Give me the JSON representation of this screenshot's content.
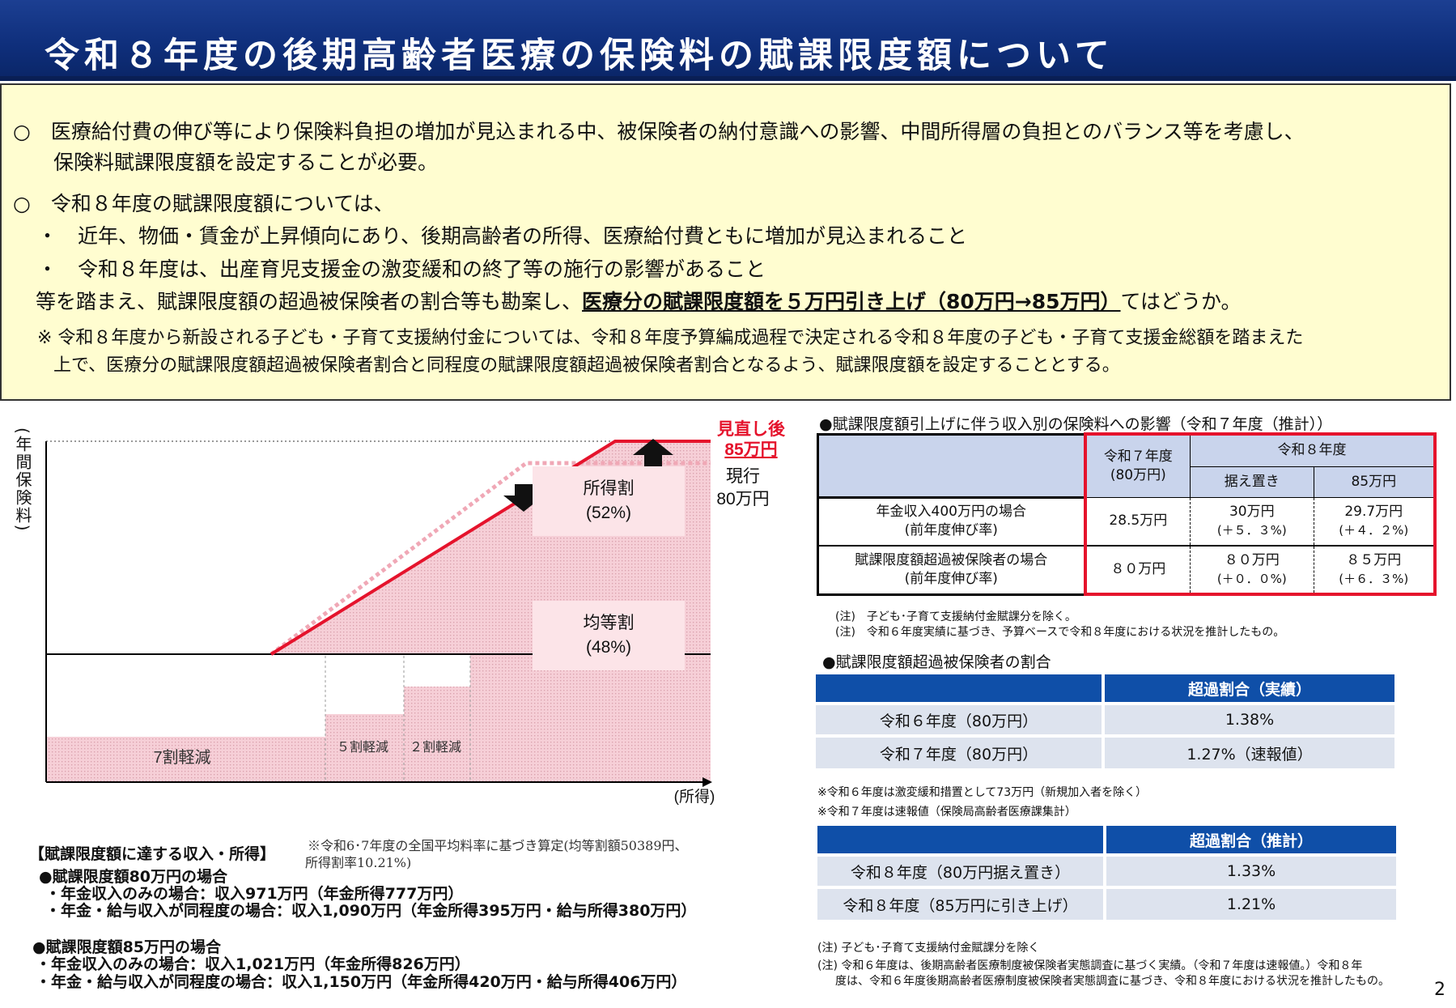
{
  "header": {
    "title": "令和８年度の後期高齢者医療の保険料の賦課限度額について"
  },
  "summary": {
    "p1_line1": "○　医療給付費の伸び等により保険料負担の増加が見込まれる中、被保険者の納付意識への影響、中間所得層の負担とのバランス等を考慮し、",
    "p1_line2": "保険料賦課限度額を設定することが必要。",
    "p2_line1": "○　令和８年度の賦課限度額については、",
    "bullet1": "・　近年、物価・賃金が上昇傾向にあり、後期高齢者の所得、医療給付費ともに増加が見込まれること",
    "bullet2": "・　令和８年度は、出産育児支援金の激変緩和の終了等の施行の影響があること",
    "conclusion_pre": "等を踏まえ、賦課限度額の超過被保険者の割合等も勘案し、",
    "conclusion_highlight": "医療分の賦課限度額を５万円引き上げ（80万円→85万円）",
    "conclusion_post": "てはどうか。",
    "note_line1": "※ 令和８年度から新設される子ども・子育て支援納付金については、令和８年度予算編成過程で決定される令和８年度の子ども・子育て支援金総額を踏まえた",
    "note_line2": "上で、医療分の賦課限度額超過被保険者割合と同程度の賦課限度額超過被保険者割合となるよう、賦課限度額を設定することとする。"
  },
  "chart": {
    "y_axis_label": "(年間保険料)",
    "x_axis_label": "(所得)",
    "new_limit_label_1": "見直し後",
    "new_limit_label_2": "85万円",
    "current_label_1": "現行",
    "current_label_2": "80万円",
    "income_share_1": "所得割",
    "income_share_2": "(52%)",
    "equal_share_1": "均等割",
    "equal_share_2": "(48%)",
    "reduction_70": "7割軽減",
    "reduction_50": "５割軽減",
    "reduction_20": "２割軽減",
    "color_fill": "#f6c9d2",
    "color_line": "#e5132c"
  },
  "left_notes": {
    "heading": "【賦課限度額に達する収入・所得】",
    "footnote_1": "※令和6･7年度の全国平均料率に基づき算定(均等割額50389円、",
    "footnote_2": "所得割率10.21%)",
    "case80_heading": "●賦課限度額80万円の場合",
    "case80_line1": "・年金収入のみの場合：収入971万円（年金所得777万円）",
    "case80_line2": "・年金・給与収入が同程度の場合：収入1,090万円（年金所得395万円・給与所得380万円）",
    "case85_heading": "●賦課限度額85万円の場合",
    "case85_line1": "・年金収入のみの場合：収入1,021万円（年金所得826万円）",
    "case85_line2": "・年金・給与収入が同程度の場合：収入1,150万円（年金所得420万円・給与所得406万円）"
  },
  "impact_table": {
    "heading": "●賦課限度額引上げに伴う収入別の保険料への影響（令和７年度（推計））",
    "col_r7_1": "令和７年度",
    "col_r7_2": "(80万円)",
    "col_r8": "令和８年度",
    "col_r8_keep": "据え置き",
    "col_r8_85": "85万円",
    "row1_label_1": "年金収入400万円の場合",
    "row1_label_2": "(前年度伸び率)",
    "row1_r7": "28.5万円",
    "row1_keep_1": "30万円",
    "row1_keep_2": "(＋５．３%)",
    "row1_85_1": "29.7万円",
    "row1_85_2": "(＋４．２%)",
    "row2_label_1": "賦課限度額超過被保険者の場合",
    "row2_label_2": "(前年度伸び率)",
    "row2_r7": "８０万円",
    "row2_keep_1": "８０万円",
    "row2_keep_2": "(＋０．０%)",
    "row2_85_1": "８５万円",
    "row2_85_2": "(＋６．３%)",
    "note1": "(注)　子ども･子育て支援納付金賦課分を除く。",
    "note2": "(注)　令和６年度実績に基づき、予算ベースで令和８年度における状況を推計したもの。"
  },
  "ratio_section": {
    "heading": "●賦課限度額超過被保険者の割合",
    "t1_header": "超過割合（実績）",
    "t1_rows": [
      {
        "label": "令和６年度（80万円）",
        "value": "1.38%"
      },
      {
        "label": "令和７年度（80万円）",
        "value": "1.27%（速報値）"
      }
    ],
    "t1_note1": "※令和６年度は激変緩和措置として73万円（新規加入者を除く）",
    "t1_note2": "※令和７年度は速報値（保険局高齢者医療課集計）",
    "t2_header": "超過割合（推計）",
    "t2_rows": [
      {
        "label": "令和８年度（80万円据え置き）",
        "value": "1.33%"
      },
      {
        "label": "令和８年度（85万円に引き上げ）",
        "value": "1.21%"
      }
    ],
    "note1": "(注)  子ども･子育て支援納付金賦課分を除く",
    "note2": "(注) 令和６年度は、後期高齢者医療制度被保険者実態調査に基づく実績。（令和７年度は速報値。）令和８年",
    "note3": "度は、令和６年度後期高齢者医療制度被保険者実態調査に基づき、令和８年度における状況を推計したもの。",
    "table_header_color": "#0f4fa8",
    "table_row_color": "#dde3ee"
  },
  "page_number": "2"
}
